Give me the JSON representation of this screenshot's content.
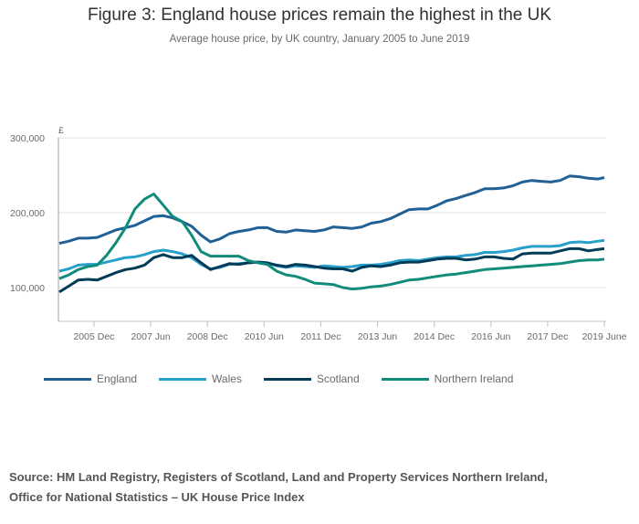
{
  "header": {
    "title": "Figure 3: England house prices remain the highest in the UK",
    "subtitle": "Average house price, by UK country, January 2005 to June 2019"
  },
  "source": {
    "line1": "Source: HM Land Registry, Registers of Scotland, Land and Property Services Northern Ireland,",
    "line2": "Office for National Statistics – UK House Price Index"
  },
  "chart_data": {
    "type": "line",
    "title": "Figure 3: England house prices remain the highest in the UK",
    "subtitle": "Average house price, by UK country, January 2005 to June 2019",
    "xlabel": "",
    "ylabel": "£",
    "ylim": [
      60000,
      300000
    ],
    "xlim": [
      "2005-01",
      "2019-06"
    ],
    "grid": true,
    "legend_position": "bottom",
    "yticks": [
      {
        "value": 100000,
        "label": "100,000"
      },
      {
        "value": 200000,
        "label": "200,000"
      },
      {
        "value": 300000,
        "label": "300,000"
      }
    ],
    "xticks": [
      {
        "month_index": 11,
        "label": "2005 Dec"
      },
      {
        "month_index": 29,
        "label": "2007 Jun"
      },
      {
        "month_index": 47,
        "label": "2008 Dec"
      },
      {
        "month_index": 65,
        "label": "2010 Jun"
      },
      {
        "month_index": 83,
        "label": "2011 Dec"
      },
      {
        "month_index": 101,
        "label": "2013 Jun"
      },
      {
        "month_index": 119,
        "label": "2014 Dec"
      },
      {
        "month_index": 137,
        "label": "2016 Jun"
      },
      {
        "month_index": 155,
        "label": "2017 Dec"
      },
      {
        "month_index": 173,
        "label": "2019 June"
      }
    ],
    "x_month_index": [
      0,
      3,
      6,
      9,
      12,
      15,
      18,
      21,
      24,
      27,
      30,
      33,
      36,
      39,
      42,
      45,
      48,
      51,
      54,
      57,
      60,
      63,
      66,
      69,
      72,
      75,
      78,
      81,
      84,
      87,
      90,
      93,
      96,
      99,
      102,
      105,
      108,
      111,
      114,
      117,
      120,
      123,
      126,
      129,
      132,
      135,
      138,
      141,
      144,
      147,
      150,
      153,
      156,
      159,
      162,
      165,
      168,
      171,
      173
    ],
    "series": [
      {
        "name": "England",
        "color": "#206095",
        "values": [
          159000,
          162000,
          166000,
          166000,
          167000,
          172000,
          177000,
          180000,
          183000,
          189000,
          195000,
          196000,
          193000,
          188000,
          182000,
          170000,
          161000,
          165000,
          172000,
          175000,
          177000,
          180000,
          180000,
          175000,
          174000,
          177000,
          176000,
          175000,
          177000,
          181000,
          180000,
          179000,
          181000,
          186000,
          188000,
          192000,
          198000,
          204000,
          205000,
          205000,
          210000,
          216000,
          219000,
          223000,
          227000,
          232000,
          232000,
          233000,
          236000,
          241000,
          243000,
          242000,
          241000,
          243000,
          249000,
          248000,
          246000,
          245000,
          247000
        ]
      },
      {
        "name": "Wales",
        "color": "#27a0cc",
        "values": [
          122000,
          125000,
          130000,
          131000,
          131000,
          134000,
          137000,
          140000,
          141000,
          144000,
          148000,
          150000,
          148000,
          145000,
          140000,
          131000,
          125000,
          127000,
          131000,
          132000,
          133000,
          134000,
          133000,
          129000,
          127000,
          129000,
          128000,
          127000,
          129000,
          128000,
          127000,
          128000,
          130000,
          130000,
          131000,
          133000,
          136000,
          137000,
          136000,
          138000,
          140000,
          141000,
          141000,
          143000,
          144000,
          147000,
          147000,
          148000,
          150000,
          153000,
          155000,
          155000,
          155000,
          156000,
          160000,
          161000,
          160000,
          162000,
          163000
        ]
      },
      {
        "name": "Scotland",
        "color": "#003c57",
        "values": [
          94000,
          102000,
          110000,
          111000,
          110000,
          115000,
          120000,
          124000,
          126000,
          130000,
          140000,
          144000,
          140000,
          140000,
          143000,
          133000,
          124000,
          128000,
          132000,
          131000,
          133000,
          134000,
          133000,
          130000,
          128000,
          131000,
          130000,
          128000,
          126000,
          125000,
          125000,
          122000,
          127000,
          129000,
          128000,
          130000,
          133000,
          134000,
          134000,
          136000,
          138000,
          139000,
          139000,
          137000,
          138000,
          141000,
          141000,
          139000,
          138000,
          145000,
          146000,
          146000,
          146000,
          149000,
          152000,
          152000,
          149000,
          151000,
          152000
        ]
      },
      {
        "name": "Northern Ireland",
        "color": "#118c7b",
        "values": [
          112000,
          117000,
          124000,
          128000,
          130000,
          143000,
          160000,
          180000,
          205000,
          218000,
          225000,
          210000,
          195000,
          188000,
          170000,
          148000,
          142000,
          142000,
          142000,
          142000,
          136000,
          133000,
          131000,
          122000,
          117000,
          115000,
          111000,
          106000,
          105000,
          104000,
          100000,
          98000,
          99000,
          101000,
          102000,
          104000,
          107000,
          110000,
          111000,
          113000,
          115000,
          117000,
          118000,
          120000,
          122000,
          124000,
          125000,
          126000,
          127000,
          128000,
          129000,
          130000,
          131000,
          132000,
          134000,
          136000,
          137000,
          137000,
          138000
        ]
      }
    ]
  }
}
